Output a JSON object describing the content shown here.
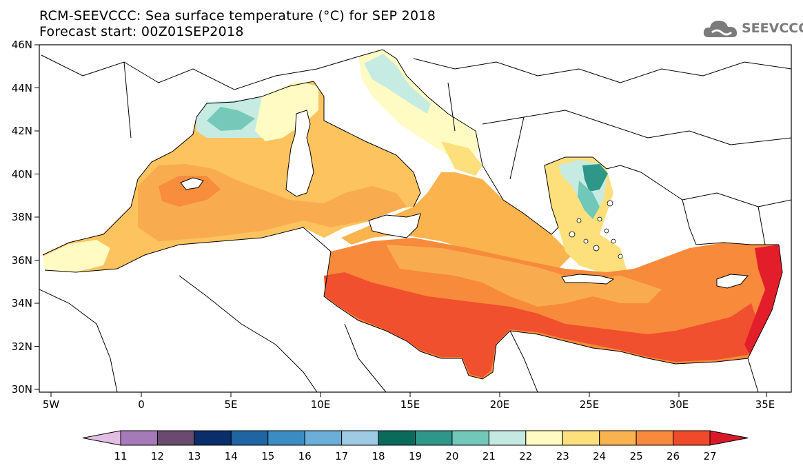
{
  "title_line1": "RCM-SEEVCCC: Sea surface temperature (°C) for SEP 2018",
  "title_line2": "Forecast start: 00Z01SEP2018",
  "logo_text": "SEEVCCC",
  "lat_labels": [
    "46N",
    "44N",
    "42N",
    "40N",
    "38N",
    "36N",
    "34N",
    "32N",
    "30N"
  ],
  "lon_labels": [
    "5W",
    "0",
    "5E",
    "10E",
    "15E",
    "20E",
    "25E",
    "30E",
    "35E"
  ],
  "colorbar": {
    "levels": [
      "11",
      "12",
      "13",
      "14",
      "15",
      "16",
      "17",
      "18",
      "19",
      "20",
      "21",
      "22",
      "23",
      "24",
      "25",
      "26",
      "27"
    ],
    "colors": [
      "#e2bee3",
      "#a47bb8",
      "#6a4a6e",
      "#0b2e6a",
      "#1f65a3",
      "#3b8cc3",
      "#6aaed9",
      "#9fcae3",
      "#0a6b5b",
      "#2f968a",
      "#71c7b8",
      "#c4e9e2",
      "#fffbc2",
      "#fde07c",
      "#f9b24d",
      "#f88a3b",
      "#f04a2b",
      "#d9192a"
    ]
  }
}
